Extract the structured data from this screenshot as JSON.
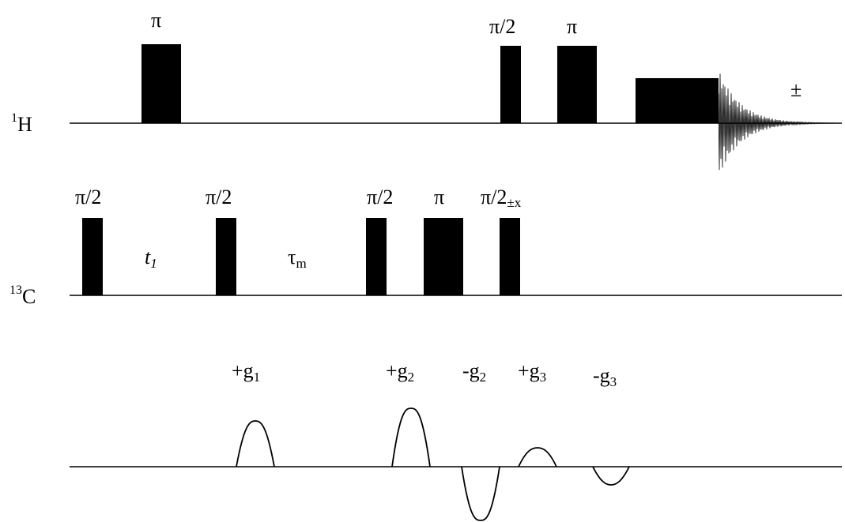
{
  "channels": {
    "h1": {
      "sup": "1",
      "name": "H"
    },
    "c13": {
      "sup": "13",
      "name": "C"
    }
  },
  "labels": {
    "pi": "π",
    "pi_half": "π/2",
    "pm": "±",
    "pm_x": "±x",
    "t1_main": "t",
    "t1_sub": "1",
    "tau_main": "τ",
    "tau_sub": "m"
  },
  "gradients": {
    "g1": {
      "sign": "+g",
      "sub": "1"
    },
    "g2_pos": {
      "sign": "+g",
      "sub": "2"
    },
    "g2_neg": {
      "sign": "-g",
      "sub": "2"
    },
    "g3_pos": {
      "sign": "+g",
      "sub": "3"
    },
    "g3_neg": {
      "sign": "-g",
      "sub": "3"
    }
  }
}
